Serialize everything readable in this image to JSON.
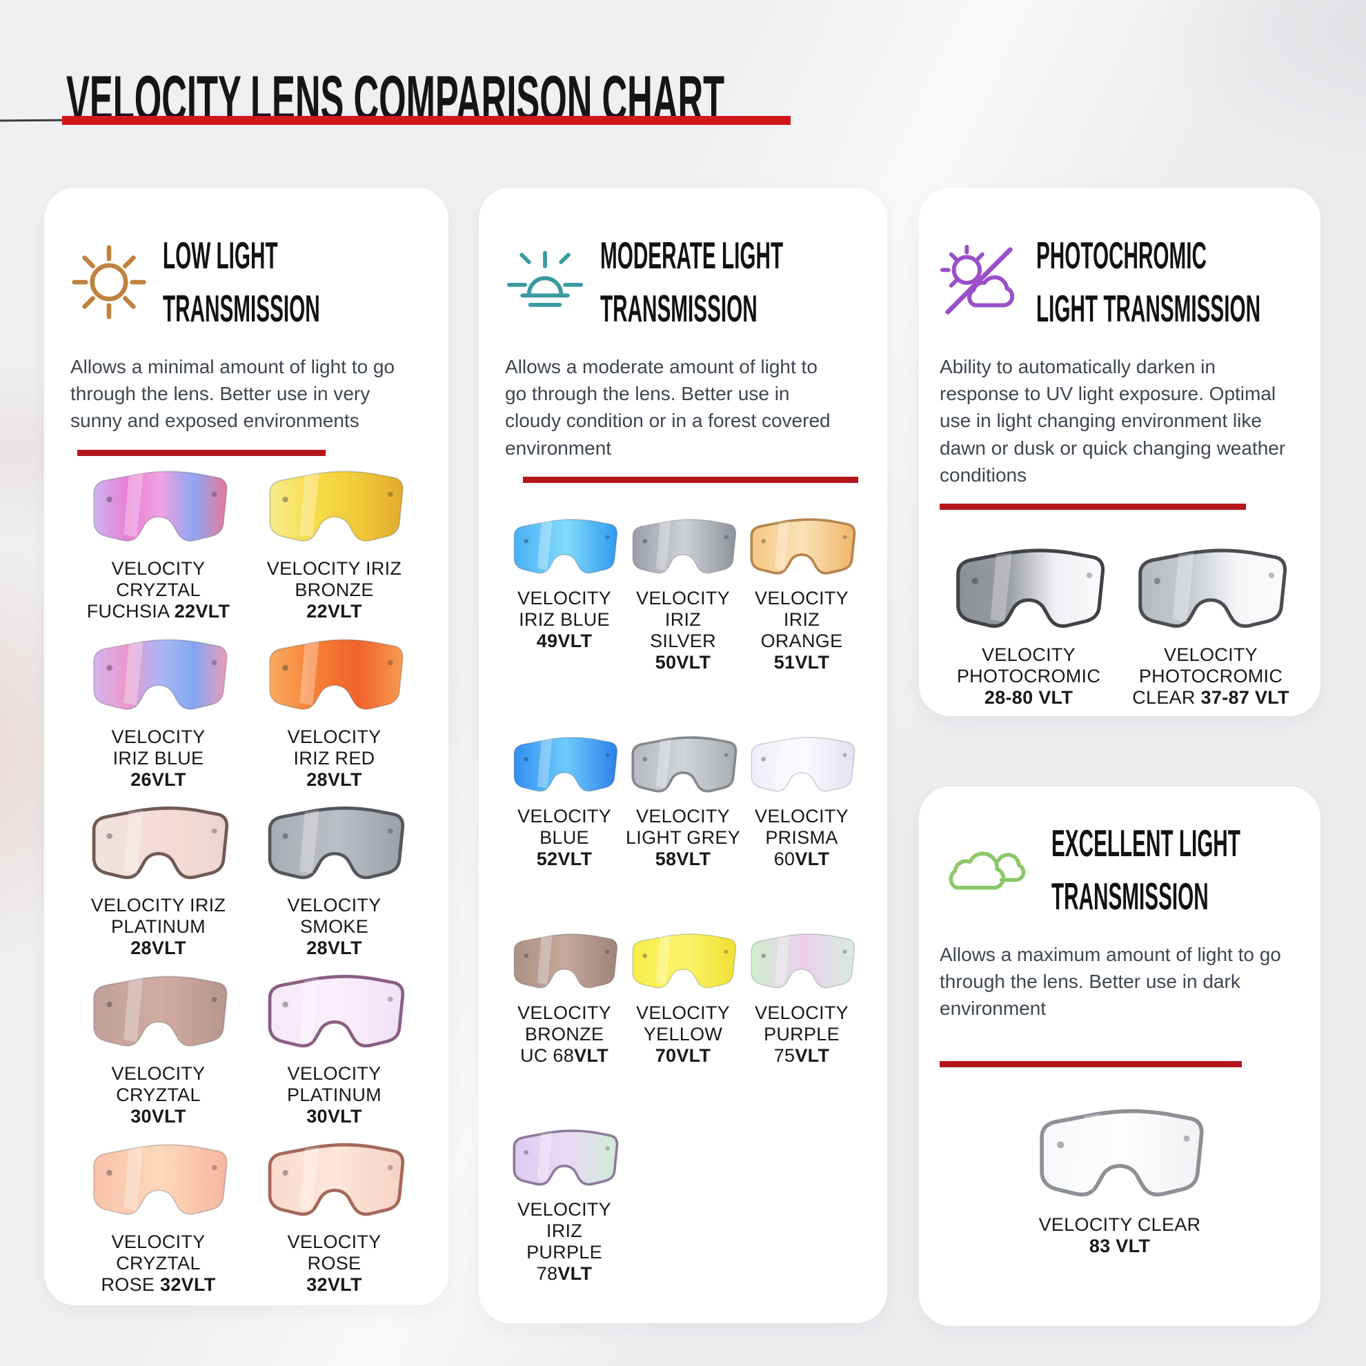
{
  "page": {
    "title": "VELOCITY LENS COMPARISON CHART",
    "title_underline_color": "#d2171c",
    "divider_color": "#b5161b",
    "background_color": "#eff0f1"
  },
  "cards": [
    {
      "id": "low-light",
      "icon": "sun-icon",
      "accent": "#c0823f",
      "title_line1": "LOW LIGHT",
      "title_line2": "TRANSMISSION",
      "description": "Allows a minimal amount of light to go through the lens. Better use in very sunny and exposed environments",
      "lenses": [
        {
          "id": "cryztal-fuchsia-22vlt",
          "lines": [
            "VELOCITY",
            "CRYZTAL",
            "FUCHSIA **22VLT**"
          ],
          "colors": [
            "#cdb4ef",
            "#e87fd4",
            "#f0a2e2",
            "#8ea6f2",
            "#e8799c"
          ],
          "rim": ""
        },
        {
          "id": "iriz-bronze-22vlt",
          "lines": [
            "VELOCITY IRIZ",
            "BRONZE",
            "**22VLT**"
          ],
          "colors": [
            "#f6ec8e",
            "#f8dc4a",
            "#f0ca3a",
            "#e2ab2d"
          ],
          "rim": ""
        },
        {
          "id": "iriz-blue-26vlt",
          "lines": [
            "VELOCITY",
            "IRIZ BLUE",
            "**26VLT**"
          ],
          "colors": [
            "#d6b5ec",
            "#ec97cd",
            "#a9b6f4",
            "#84a8f2",
            "#eb9ab8"
          ],
          "rim": ""
        },
        {
          "id": "iriz-red-28vlt",
          "lines": [
            "VELOCITY",
            "IRIZ RED",
            "**28VLT**"
          ],
          "colors": [
            "#f7ab60",
            "#f78136",
            "#f1622c",
            "#f79c50"
          ],
          "rim": ""
        },
        {
          "id": "iriz-platinum-28vlt",
          "lines": [
            "VELOCITY IRIZ",
            "PLATINUM",
            "**28VLT**"
          ],
          "colors": [
            "#efe3df",
            "#f5dbd7",
            "#ead6d0"
          ],
          "rim": "#6f5a54"
        },
        {
          "id": "smoke-28vlt",
          "lines": [
            "VELOCITY",
            "SMOKE",
            "**28VLT**"
          ],
          "colors": [
            "#a9acb3",
            "#bcbfc5",
            "#9da0a7"
          ],
          "rim": "#54575d"
        },
        {
          "id": "cryztal-30vlt",
          "lines": [
            "VELOCITY",
            "CRYZTAL",
            "**30VLT**"
          ],
          "colors": [
            "#c0a098",
            "#d0aca2",
            "#b6968e"
          ],
          "rim": ""
        },
        {
          "id": "platinum-30vlt",
          "lines": [
            "VELOCITY",
            "PLATINUM",
            "**30VLT**"
          ],
          "colors": [
            "#f5e7f9",
            "#faf0fc",
            "#f0e2f5"
          ],
          "rim": "#8a5f83"
        },
        {
          "id": "cryztal-rose-32vlt",
          "lines": [
            "VELOCITY",
            "CRYZTAL",
            "ROSE **32VLT**"
          ],
          "colors": [
            "#f9c2ac",
            "#fdd8ba",
            "#f6b6a0"
          ],
          "rim": ""
        },
        {
          "id": "rose-32vlt",
          "lines": [
            "VELOCITY",
            "ROSE",
            "**32VLT**"
          ],
          "colors": [
            "#fadbce",
            "#fde6da",
            "#f6d1c4"
          ],
          "rim": "#a5685a"
        }
      ]
    },
    {
      "id": "moderate-light",
      "icon": "sunrise-icon",
      "accent": "#3a9aa0",
      "title_line1": "MODERATE LIGHT",
      "title_line2": "TRANSMISSION",
      "description": "Allows a moderate amount of light to go through the lens. Better use in cloudy condition or in a forest covered environment",
      "lenses": [
        {
          "id": "iriz-blue-49vlt",
          "lines": [
            "VELOCITY",
            "IRIZ BLUE",
            "**49VLT**"
          ],
          "colors": [
            "#47b0f4",
            "#83dafb",
            "#2f9af0"
          ],
          "rim": ""
        },
        {
          "id": "iriz-silver-50vlt",
          "lines": [
            "VELOCITY",
            "IRIZ",
            "SILVER",
            "**50VLT**"
          ],
          "colors": [
            "#9b9ea5",
            "#ced1d6",
            "#8f9299"
          ],
          "rim": ""
        },
        {
          "id": "iriz-orange-51vlt",
          "lines": [
            "VELOCITY",
            "IRIZ",
            "ORANGE",
            "**51VLT**"
          ],
          "colors": [
            "#f5c887",
            "#fbe1b5",
            "#efb56a"
          ],
          "rim": "#b5854e"
        },
        {
          "id": "blue-52vlt",
          "lines": [
            "VELOCITY",
            "BLUE",
            "**52VLT**"
          ],
          "colors": [
            "#318ff2",
            "#6ecafb",
            "#2b81ea"
          ],
          "rim": ""
        },
        {
          "id": "light-grey-58vlt",
          "lines": [
            "VELOCITY",
            "LIGHT GREY",
            "**58VLT**"
          ],
          "colors": [
            "#b7bac0",
            "#d1d4d8",
            "#aaadb2"
          ],
          "rim": "#85888d"
        },
        {
          "id": "prisma-60vlt",
          "lines": [
            "VELOCITY",
            "PRISMA",
            "60**VLT**"
          ],
          "colors": [
            "#efedf9",
            "#fbfaff",
            "#e5e2f3"
          ],
          "rim": ""
        },
        {
          "id": "bronze-uc-68vlt",
          "lines": [
            "VELOCITY",
            "BRONZE",
            "UC 68**VLT**"
          ],
          "colors": [
            "#ac9185",
            "#c5a99d",
            "#9d8379"
          ],
          "rim": ""
        },
        {
          "id": "yellow-70vlt",
          "lines": [
            "VELOCITY",
            "YELLOW",
            "**70VLT**"
          ],
          "colors": [
            "#f5ed4a",
            "#fbf56a",
            "#efdf33"
          ],
          "rim": ""
        },
        {
          "id": "purple-75vlt",
          "lines": [
            "VELOCITY",
            "PURPLE",
            "75**VLT**"
          ],
          "colors": [
            "#cfeecf",
            "#eccfec",
            "#d6edde"
          ],
          "rim": ""
        },
        {
          "id": "iriz-purple-78vlt",
          "lines": [
            "VELOCITY",
            "IRIZ",
            "PURPLE",
            "78**VLT**"
          ],
          "colors": [
            "#ddccef",
            "#e9daf5",
            "#d0ebd7"
          ],
          "rim": "#8f7a9a"
        }
      ]
    },
    {
      "id": "photochromic",
      "icon": "sun-cloud-slash-icon",
      "accent": "#9b4fc8",
      "title_line1": "PHOTOCHROMIC",
      "title_line2": "LIGHT TRANSMISSION",
      "description": "Ability to automatically darken in response to UV light exposure. Optimal use in light changing environment like dawn or dusk or quick changing weather conditions",
      "lenses": [
        {
          "id": "photocromic-28-80-vlt",
          "lines": [
            "VELOCITY",
            "PHOTOCROMIC",
            "**28-80 VLT**"
          ],
          "colors": [
            "#8e9196",
            "#979a9f",
            "#eff0f3",
            "#fbfbfd"
          ],
          "rim": "#3f4246"
        },
        {
          "id": "photocromic-clear-37-87-vlt",
          "lines": [
            "VELOCITY",
            "PHOTOCROMIC",
            "CLEAR **37-87 VLT**"
          ],
          "colors": [
            "#b7bac0",
            "#c6c9cd",
            "#f5f6f8",
            "#fcfcfe"
          ],
          "rim": "#4a4d52"
        }
      ]
    },
    {
      "id": "excellent-light",
      "icon": "clouds-icon",
      "accent": "#8cc868",
      "title_line1": "EXCELLENT LIGHT",
      "title_line2": "TRANSMISSION",
      "description": "Allows a maximum amount of light to go through the lens. Better use in dark environment",
      "lenses": [
        {
          "id": "clear-83-vlt",
          "lines": [
            "VELOCITY CLEAR",
            "**83 VLT**"
          ],
          "colors": [
            "#f7f8fa",
            "#fdfdfe",
            "#f1f2f4"
          ],
          "rim": "#8d9196"
        }
      ]
    }
  ]
}
